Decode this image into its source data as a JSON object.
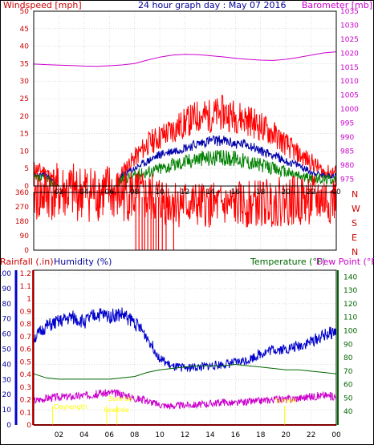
{
  "header": {
    "left_label": "Windspeed [mph]",
    "title": "24 hour graph day : May 07 2016",
    "right_label": "Barometer [mb]"
  },
  "lower_header": {
    "rainfall": "Rainfall (.in)",
    "humidity": "Humidity (%)",
    "temperature": "Temperature (°F)",
    "dewpoint": "Dew Point (°F)"
  },
  "events": {
    "daylength": "Daylength",
    "sunrise": "Sunrise",
    "lowtide": "Lowtide",
    "sunset": "Sunset"
  },
  "colors": {
    "frame": "#000000",
    "wind_gust": "#ff0000",
    "wind_avg": "#008000",
    "wind_mid": "#0000aa",
    "barometer": "#cc00cc",
    "direction": "#ff0000",
    "humidity": "#0000cc",
    "temperature": "#006600",
    "dewpoint": "#cc00cc",
    "rainfall": "#ff0000",
    "events": "#ffff00",
    "grid": "#c8c8c8"
  },
  "chart_data": [
    {
      "id": "wind",
      "type": "line",
      "x_ticks": [
        "02",
        "04",
        "06",
        "08",
        "10",
        "12",
        "14",
        "16",
        "18",
        "20",
        "22",
        "00"
      ],
      "y_left": {
        "ticks": [
          0,
          5,
          10,
          15,
          20,
          25,
          30,
          35,
          40,
          45,
          50
        ],
        "ylim": [
          0,
          50
        ]
      },
      "y_right": {
        "ticks": [
          975,
          980,
          985,
          990,
          995,
          1000,
          1005,
          1010,
          1015,
          1020,
          1025,
          1030,
          1035
        ],
        "ylim": [
          972.5,
          1035
        ]
      },
      "barometer": {
        "x": [
          0,
          1,
          2,
          3,
          4,
          5,
          6,
          7,
          8,
          9,
          10,
          11,
          12,
          13,
          14,
          15,
          16,
          17,
          18,
          19,
          20,
          21,
          22,
          23,
          24
        ],
        "y": [
          1016.1,
          1015.9,
          1015.7,
          1015.6,
          1015.4,
          1015.3,
          1015.5,
          1015.8,
          1016.3,
          1017.5,
          1018.6,
          1019.3,
          1019.6,
          1019.5,
          1019.1,
          1018.7,
          1018.2,
          1017.8,
          1017.5,
          1017.4,
          1017.8,
          1018.5,
          1019.3,
          1020.1,
          1020.5
        ]
      },
      "gust": {
        "x": [
          0,
          1,
          2,
          3,
          4,
          5,
          6,
          6.5,
          7,
          8,
          9,
          10,
          11,
          12,
          13,
          14,
          15,
          16,
          17,
          18,
          19,
          20,
          21,
          22,
          23,
          23.5,
          24
        ],
        "y": [
          5,
          4,
          0,
          0,
          0,
          0,
          0,
          0,
          4,
          8,
          12,
          14,
          16,
          18,
          20,
          20,
          21,
          20,
          19,
          17,
          15,
          12,
          9,
          7,
          4,
          4,
          4
        ]
      },
      "mid": {
        "x": [
          0,
          1,
          2,
          3,
          4,
          5,
          6,
          6.5,
          7,
          8,
          9,
          10,
          11,
          12,
          13,
          14,
          15,
          16,
          17,
          18,
          19,
          20,
          21,
          22,
          23,
          23.5,
          24
        ],
        "y": [
          3,
          3,
          0,
          0,
          0,
          0,
          0,
          0,
          3,
          5,
          7,
          9,
          10,
          11,
          12,
          13,
          13,
          12,
          12,
          10,
          9,
          7,
          6,
          4,
          3,
          3,
          3
        ]
      },
      "avg": {
        "x": [
          0,
          1,
          2,
          3,
          4,
          5,
          6,
          6.5,
          7,
          8,
          9,
          10,
          11,
          12,
          13,
          14,
          15,
          16,
          17,
          18,
          19,
          20,
          21,
          22,
          23,
          23.5,
          24
        ],
        "y": [
          2,
          2,
          0,
          0,
          0,
          0,
          0,
          0,
          2,
          3,
          4,
          5,
          6,
          7,
          8,
          8,
          8,
          8,
          7,
          6,
          5,
          4,
          3,
          2,
          2,
          2,
          2
        ]
      }
    },
    {
      "id": "direction",
      "type": "line",
      "y_left": {
        "ticks": [
          0,
          90,
          180,
          270,
          360
        ],
        "ylim": [
          0,
          360
        ]
      },
      "compass": [
        "N",
        "W",
        "S",
        "E",
        "N"
      ],
      "x": [
        0,
        0.5,
        1,
        2,
        3,
        4,
        5,
        6,
        6.5,
        7,
        7.5,
        8,
        9,
        10,
        10.5,
        11,
        12,
        13,
        14,
        15,
        16,
        17,
        18,
        19,
        20,
        21,
        22,
        23,
        24
      ],
      "y": [
        360,
        330,
        360,
        360,
        360,
        360,
        360,
        360,
        340,
        340,
        360,
        330,
        320,
        320,
        310,
        300,
        290,
        280,
        280,
        275,
        280,
        285,
        295,
        300,
        305,
        310,
        310,
        315,
        315
      ]
    },
    {
      "id": "climate",
      "type": "line",
      "humidity_axis": {
        "ticks": [
          0,
          10,
          20,
          30,
          40,
          50,
          60,
          70,
          80,
          90,
          100
        ],
        "ylim": [
          0,
          100
        ]
      },
      "rain_axis": {
        "ticks": [
          "0",
          "0.1",
          "0.2",
          "0.3",
          "0.4",
          "0.5",
          "0.6",
          "0.7",
          "0.8",
          "0.9",
          "1",
          "1.1",
          "1.2"
        ],
        "ylim": [
          0,
          1.2
        ]
      },
      "temp_axis": {
        "ticks": [
          40,
          50,
          60,
          70,
          80,
          90,
          100,
          110,
          120,
          130,
          140
        ],
        "ylim": [
          30,
          145
        ]
      },
      "humidity": {
        "x": [
          0,
          1,
          2,
          3,
          4,
          5,
          6,
          7,
          8,
          9,
          10,
          11,
          12,
          13,
          14,
          15,
          16,
          17,
          18,
          19,
          20,
          21,
          22,
          23,
          24
        ],
        "y": [
          57,
          65,
          68,
          71,
          68,
          73,
          72,
          73,
          68,
          58,
          44,
          38,
          38,
          38,
          39,
          40,
          41,
          43,
          47,
          50,
          50,
          52,
          55,
          59,
          62
        ]
      },
      "temperature": {
        "x": [
          0,
          1,
          2,
          3,
          4,
          5,
          6,
          7,
          8,
          9,
          10,
          11,
          12,
          13,
          14,
          15,
          16,
          17,
          18,
          19,
          20,
          21,
          22,
          23,
          24
        ],
        "y": [
          68,
          65,
          64,
          64,
          64,
          64,
          64,
          65,
          66,
          69,
          71,
          72,
          73,
          74,
          74,
          74,
          75,
          74,
          73,
          72,
          71,
          71,
          70,
          69,
          68
        ]
      },
      "dewpoint": {
        "x": [
          0,
          1,
          2,
          3,
          4,
          5,
          6,
          7,
          8,
          9,
          10,
          11,
          12,
          13,
          14,
          15,
          16,
          17,
          18,
          19,
          20,
          21,
          22,
          23,
          24
        ],
        "y": [
          48,
          50,
          51,
          51,
          52,
          53,
          54,
          53,
          50,
          48,
          45,
          44,
          45,
          45,
          46,
          47,
          46,
          47,
          48,
          49,
          49,
          50,
          51,
          52,
          51
        ]
      },
      "rainfall": {
        "x": [
          0,
          24
        ],
        "y": [
          0,
          0
        ]
      },
      "event_times": {
        "daylength": 1.5,
        "sunrise": 5.8,
        "lowtide": 6.6,
        "sunset": 19.9
      }
    }
  ]
}
